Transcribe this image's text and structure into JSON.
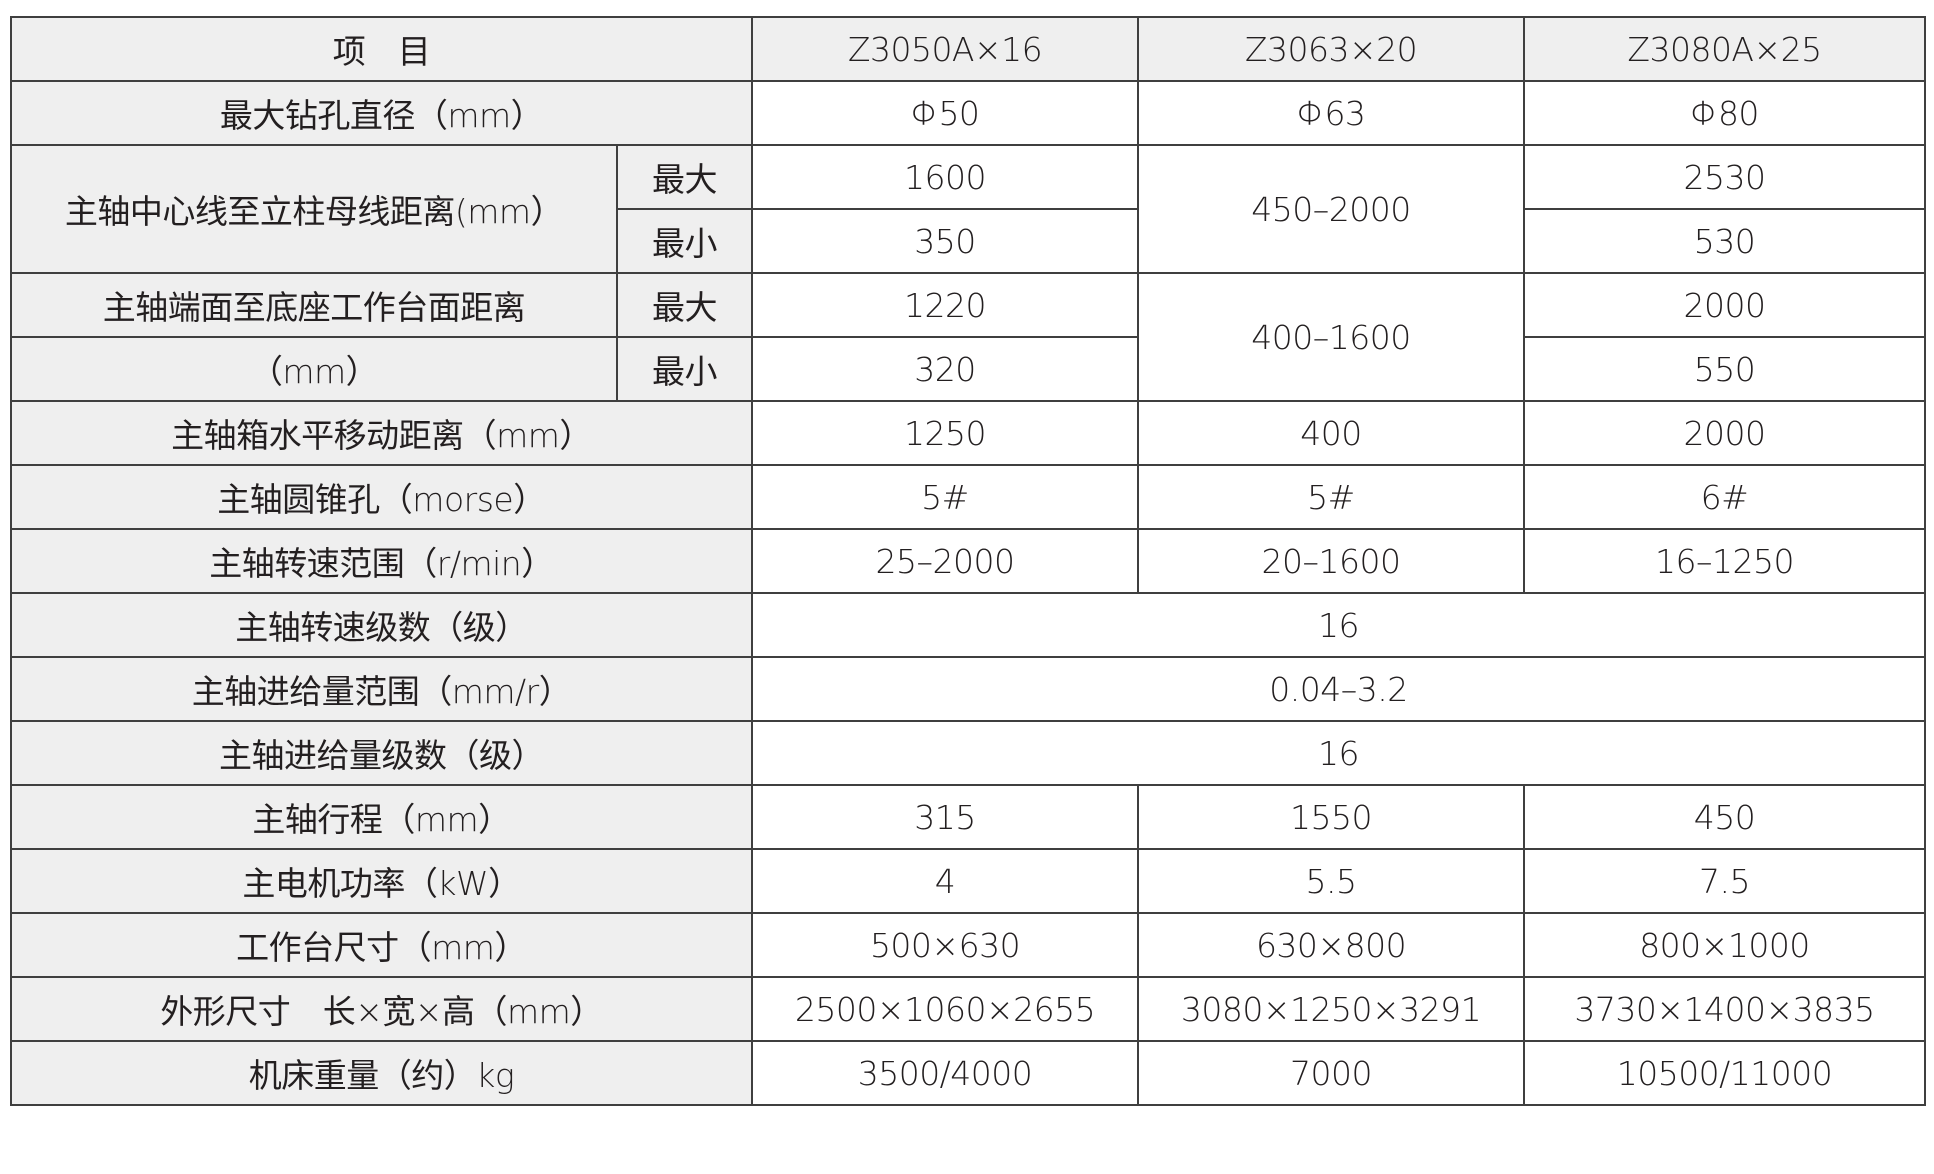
{
  "header": {
    "item": "项　目",
    "models": [
      "Z3050A×16",
      "Z3063×20",
      "Z3080A×25"
    ]
  },
  "rows": {
    "max_drill_dia": {
      "label": "最大钻孔直径（mm）",
      "values": [
        "Φ50",
        "Φ63",
        "Φ80"
      ]
    },
    "spindle_to_column": {
      "label": "主轴中心线至立柱母线距离(mm）",
      "max_label": "最大",
      "min_label": "最小",
      "max": [
        "1600",
        "2530"
      ],
      "min": [
        "350",
        "530"
      ],
      "merged": "450–2000"
    },
    "spindle_to_table": {
      "label_line1": "主轴端面至底座工作台面距离",
      "label_line2": "（mm）",
      "max_label": "最大",
      "min_label": "最小",
      "max": [
        "1220",
        "2000"
      ],
      "min": [
        "320",
        "550"
      ],
      "merged": "400–1600"
    },
    "headstock_travel": {
      "label": "主轴箱水平移动距离（mm）",
      "values": [
        "1250",
        "400",
        "2000"
      ]
    },
    "spindle_taper": {
      "label": "主轴圆锥孔（morse）",
      "values": [
        "5#",
        "5#",
        "6#"
      ]
    },
    "speed_range": {
      "label": "主轴转速范围（r/min）",
      "values": [
        "25–2000",
        "20–1600",
        "16–1250"
      ]
    },
    "speed_steps": {
      "label": "主轴转速级数（级）",
      "value": "16"
    },
    "feed_range": {
      "label": "主轴进给量范围（mm/r）",
      "value": "0.04–3.2"
    },
    "feed_steps": {
      "label": "主轴进给量级数（级）",
      "value": "16"
    },
    "spindle_stroke": {
      "label": "主轴行程（mm）",
      "values": [
        "315",
        "1550",
        "450"
      ]
    },
    "motor_power": {
      "label": "主电机功率（kW）",
      "values": [
        "4",
        "5.5",
        "7.5"
      ]
    },
    "table_size": {
      "label": "工作台尺寸（mm）",
      "values": [
        "500×630",
        "630×800",
        "800×1000"
      ]
    },
    "overall_dims": {
      "label": "外形尺寸　长×宽×高（mm）",
      "values": [
        "2500×1060×2655",
        "3080×1250×3291",
        "3730×1400×3835"
      ]
    },
    "weight": {
      "label": "机床重量（约）kg",
      "values": [
        "3500/4000",
        "7000",
        "10500/11000"
      ]
    }
  }
}
